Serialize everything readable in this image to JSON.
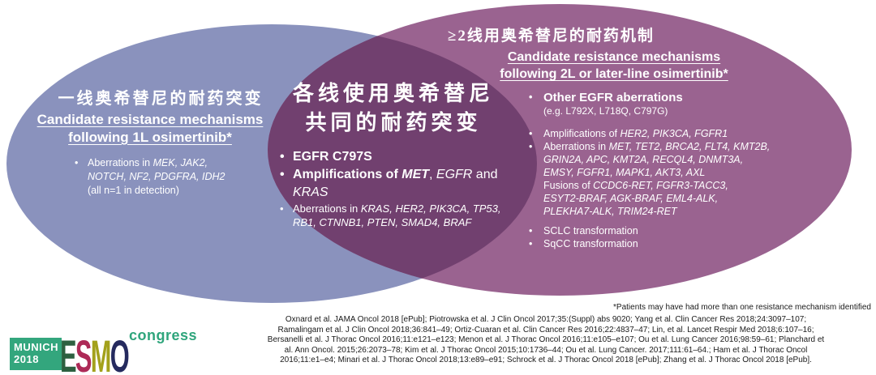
{
  "colors": {
    "left_ellipse": "#8a92bd",
    "right_ellipse": "#9a6390",
    "overlap": "#71406f",
    "logo_green": "#33a67d",
    "logo_letter_e": "#2d6040",
    "logo_letter_s": "#ad2a57",
    "logo_letter_m": "#a3a11c",
    "logo_letter_o": "#252a5e",
    "congress_green": "#2fa57c"
  },
  "venn": {
    "left": {
      "title_zh": "一线奥希替尼的耐药突变",
      "subtitle_line1": "Candidate resistance mechanisms",
      "subtitle_line2": "following 1L osimertinib*",
      "bullet_lines": [
        [
          {
            "t": "Aberrations in "
          },
          {
            "t": "MEK, JAK2,",
            "s": "i"
          }
        ],
        [
          {
            "t": "NOTCH, NF2, PDGFRA, IDH2",
            "s": "i"
          }
        ],
        [
          {
            "t": "(all n=1 in detection)"
          }
        ]
      ]
    },
    "center": {
      "title_zh_line1": "各线使用奥希替尼",
      "title_zh_line2": "共同的耐药突变",
      "bullet1": [
        {
          "t": "EGFR C797S",
          "s": "b"
        }
      ],
      "bullet2": [
        {
          "t": "Amplifications of ",
          "s": "b"
        },
        {
          "t": "MET",
          "s": "bi"
        },
        {
          "t": ", "
        },
        {
          "t": "EGFR",
          "s": "i"
        },
        {
          "t": " and "
        },
        {
          "t": "KRAS",
          "s": "i"
        }
      ],
      "bullet3_line1": [
        {
          "t": "Aberrations in "
        },
        {
          "t": "KRAS, HER2, PIK3CA, TP53,",
          "s": "i"
        }
      ],
      "bullet3_line2": [
        {
          "t": "RB1, CTNNB1, PTEN, SMAD4, BRAF",
          "s": "i"
        }
      ]
    },
    "right": {
      "title_zh": "≥2线用奥希替尼的耐药机制",
      "subtitle_line1": "Candidate resistance mechanisms",
      "subtitle_line2": "following 2L or later-line osimertinib*",
      "bullet1_title": [
        {
          "t": "Other EGFR aberrations",
          "s": "b"
        }
      ],
      "bullet1_sub": [
        {
          "t": "(e.g. L792X, L718Q, C797G)"
        }
      ],
      "bullet2": [
        {
          "t": "Amplifications of "
        },
        {
          "t": "HER2, PIK3CA, FGFR1",
          "s": "i"
        }
      ],
      "bullet3_lines": [
        [
          {
            "t": "Aberrations in "
          },
          {
            "t": "MET, TET2, BRCA2, FLT4, KMT2B,",
            "s": "i"
          }
        ],
        [
          {
            "t": "GRIN2A, APC, KMT2A, RECQL4, DNMT3A,",
            "s": "i"
          }
        ],
        [
          {
            "t": "EMSY, FGFR1, MAPK1, AKT3, AXL",
            "s": "i"
          }
        ],
        [
          {
            "t": "Fusions of "
          },
          {
            "t": "CCDC6-RET, FGFR3-TACC3,",
            "s": "i"
          }
        ],
        [
          {
            "t": "ESYT2-BRAF, AGK-BRAF, EML4-ALK,",
            "s": "i"
          }
        ],
        [
          {
            "t": "PLEKHA7-ALK, TRIM24-RET",
            "s": "i"
          }
        ]
      ],
      "bullet4": [
        {
          "t": "SCLC transformation"
        }
      ],
      "bullet5": [
        {
          "t": "SqCC transformation"
        }
      ]
    }
  },
  "footnote": "*Patients may have had more than one resistance mechanism identified",
  "citations": [
    "Oxnard et al. JAMA Oncol 2018 [ePub]; Piotrowska et al. J Clin Oncol 2017;35:(Suppl) abs 9020; Yang et al. Clin Cancer Res 2018;24:3097–107;",
    "Ramalingam et al. J Clin Oncol 2018;36:841–49; Ortiz-Cuaran et al. Clin Cancer Res 2016;22:4837–47; Lin, et al. Lancet Respir Med 2018;6:107–16;",
    "Bersanelli et al. J Thorac Oncol 2016;11:e121–e123; Menon et al. J Thorac Oncol 2016;11:e105–e107; Ou et al. Lung Cancer 2016;98:59–61; Planchard et",
    "al. Ann Oncol. 2015;26:2073–78; Kim et al. J Thorac Oncol 2015;10:1736–44; Ou et al. Lung Cancer. 2017;111:61–64.; Ham et al. J Thorac Oncol",
    "2016;11:e1–e4; Minari et al. J Thorac Oncol 2018;13:e89–e91; Schrock et al. J Thorac Oncol 2018 [ePub]; Zhang et al. J Thorac Oncol 2018 [ePub]."
  ],
  "logo": {
    "city": "MUNICH",
    "year": "2018",
    "letters": [
      "E",
      "S",
      "M",
      "O"
    ],
    "congress": "congress"
  }
}
